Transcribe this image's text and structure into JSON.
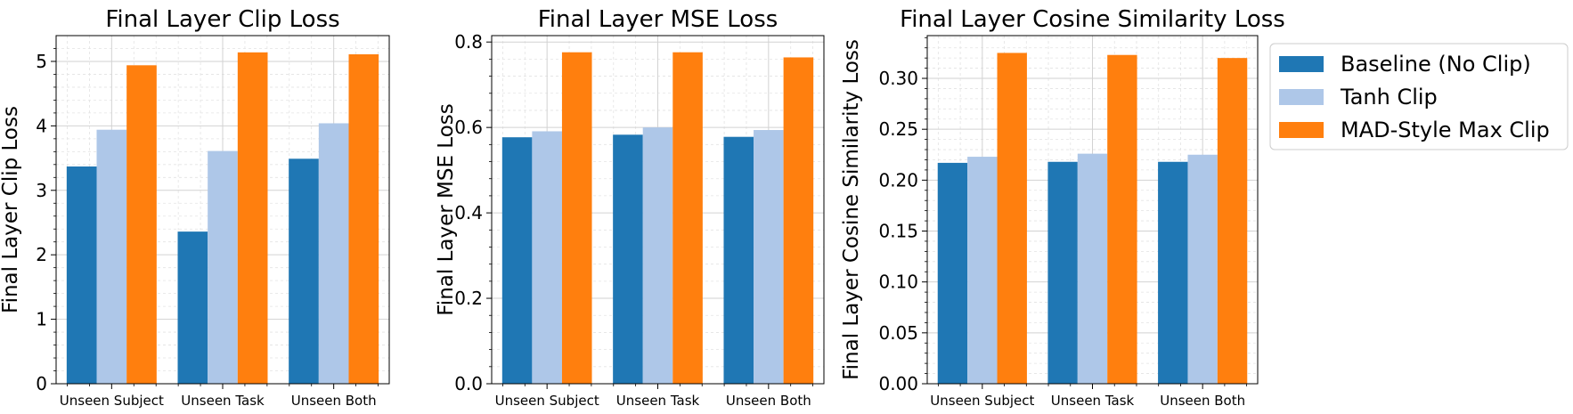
{
  "colors": {
    "baseline": "#1f77b4",
    "tanh": "#aec7e8",
    "mad": "#ff7f0e"
  },
  "legend": {
    "placement": "outside-right",
    "entries": [
      {
        "label": "Baseline (No Clip)",
        "color": "#1f77b4"
      },
      {
        "label": "Tanh Clip",
        "color": "#aec7e8"
      },
      {
        "label": "MAD-Style Max Clip",
        "color": "#ff7f0e"
      }
    ]
  },
  "chart_data": [
    {
      "type": "bar",
      "title": "Final Layer Clip Loss",
      "xlabel": "",
      "ylabel": "Final Layer Clip Loss",
      "categories": [
        "Unseen Subject",
        "Unseen Task",
        "Unseen Both"
      ],
      "ylim": [
        0,
        5.4
      ],
      "yticks": [
        0,
        1,
        2,
        3,
        4,
        5
      ],
      "ytick_labels": [
        "0",
        "1",
        "2",
        "3",
        "4",
        "5"
      ],
      "grid": true,
      "series": [
        {
          "name": "Baseline (No Clip)",
          "values": [
            3.37,
            2.36,
            3.49
          ]
        },
        {
          "name": "Tanh Clip",
          "values": [
            3.94,
            3.61,
            4.04
          ]
        },
        {
          "name": "MAD-Style Max Clip",
          "values": [
            4.94,
            5.14,
            5.11
          ]
        }
      ]
    },
    {
      "type": "bar",
      "title": "Final Layer MSE Loss",
      "xlabel": "",
      "ylabel": "Final Layer MSE Loss",
      "categories": [
        "Unseen Subject",
        "Unseen Task",
        "Unseen Both"
      ],
      "ylim": [
        0,
        0.815
      ],
      "yticks": [
        0,
        0.2,
        0.4,
        0.6,
        0.8
      ],
      "ytick_labels": [
        "0.0",
        "0.2",
        "0.4",
        "0.6",
        "0.8"
      ],
      "grid": true,
      "series": [
        {
          "name": "Baseline (No Clip)",
          "values": [
            0.577,
            0.583,
            0.578
          ]
        },
        {
          "name": "Tanh Clip",
          "values": [
            0.591,
            0.6,
            0.594
          ]
        },
        {
          "name": "MAD-Style Max Clip",
          "values": [
            0.776,
            0.776,
            0.764
          ]
        }
      ]
    },
    {
      "type": "bar",
      "title": "Final Layer Cosine Similarity Loss",
      "xlabel": "",
      "ylabel": "Final Layer Cosine Similarity Loss",
      "categories": [
        "Unseen Subject",
        "Unseen Task",
        "Unseen Both"
      ],
      "ylim": [
        0,
        0.342
      ],
      "yticks": [
        0,
        0.05,
        0.1,
        0.15,
        0.2,
        0.25,
        0.3
      ],
      "ytick_labels": [
        "0.00",
        "0.05",
        "0.10",
        "0.15",
        "0.20",
        "0.25",
        "0.30"
      ],
      "grid": true,
      "series": [
        {
          "name": "Baseline (No Clip)",
          "values": [
            0.217,
            0.218,
            0.218
          ]
        },
        {
          "name": "Tanh Clip",
          "values": [
            0.223,
            0.226,
            0.225
          ]
        },
        {
          "name": "MAD-Style Max Clip",
          "values": [
            0.325,
            0.323,
            0.32
          ]
        }
      ]
    }
  ]
}
